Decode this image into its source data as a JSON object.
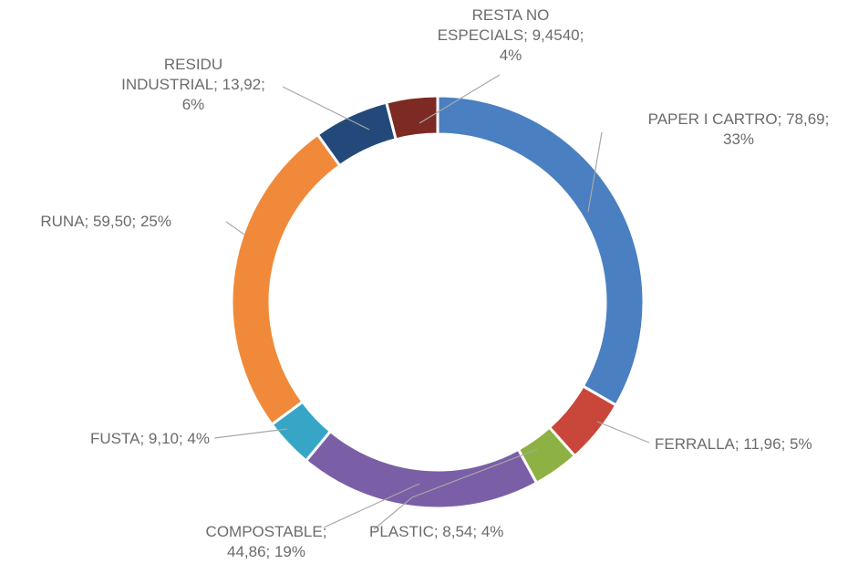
{
  "chart_data": {
    "type": "pie",
    "variant": "donut",
    "title": "",
    "legend": "none",
    "slices": [
      {
        "category": "PAPER I CARTRO",
        "value": 78.69,
        "value_text": "78,69",
        "percent_text": "33%",
        "color": "#4a7fc1"
      },
      {
        "category": "FERRALLA",
        "value": 11.96,
        "value_text": "11,96",
        "percent_text": "5%",
        "color": "#c9473a"
      },
      {
        "category": "PLASTIC",
        "value": 8.54,
        "value_text": "8,54",
        "percent_text": "4%",
        "color": "#8db243"
      },
      {
        "category": "COMPOSTABLE",
        "value": 44.86,
        "value_text": "44,86",
        "percent_text": "19%",
        "color": "#7a5fa6"
      },
      {
        "category": "FUSTA",
        "value": 9.1,
        "value_text": "9,10",
        "percent_text": "4%",
        "color": "#37a6c6"
      },
      {
        "category": "RUNA",
        "value": 59.5,
        "value_text": "59,50",
        "percent_text": "25%",
        "color": "#f08a3a"
      },
      {
        "category": "RESIDU INDUSTRIAL",
        "value": 13.92,
        "value_text": "13,92",
        "percent_text": "6%",
        "color": "#23497a"
      },
      {
        "category": "RESTA NO ESPECIALS",
        "value": 9.454,
        "value_text": "9,4540",
        "percent_text": "4%",
        "color": "#7d2a25"
      }
    ]
  }
}
